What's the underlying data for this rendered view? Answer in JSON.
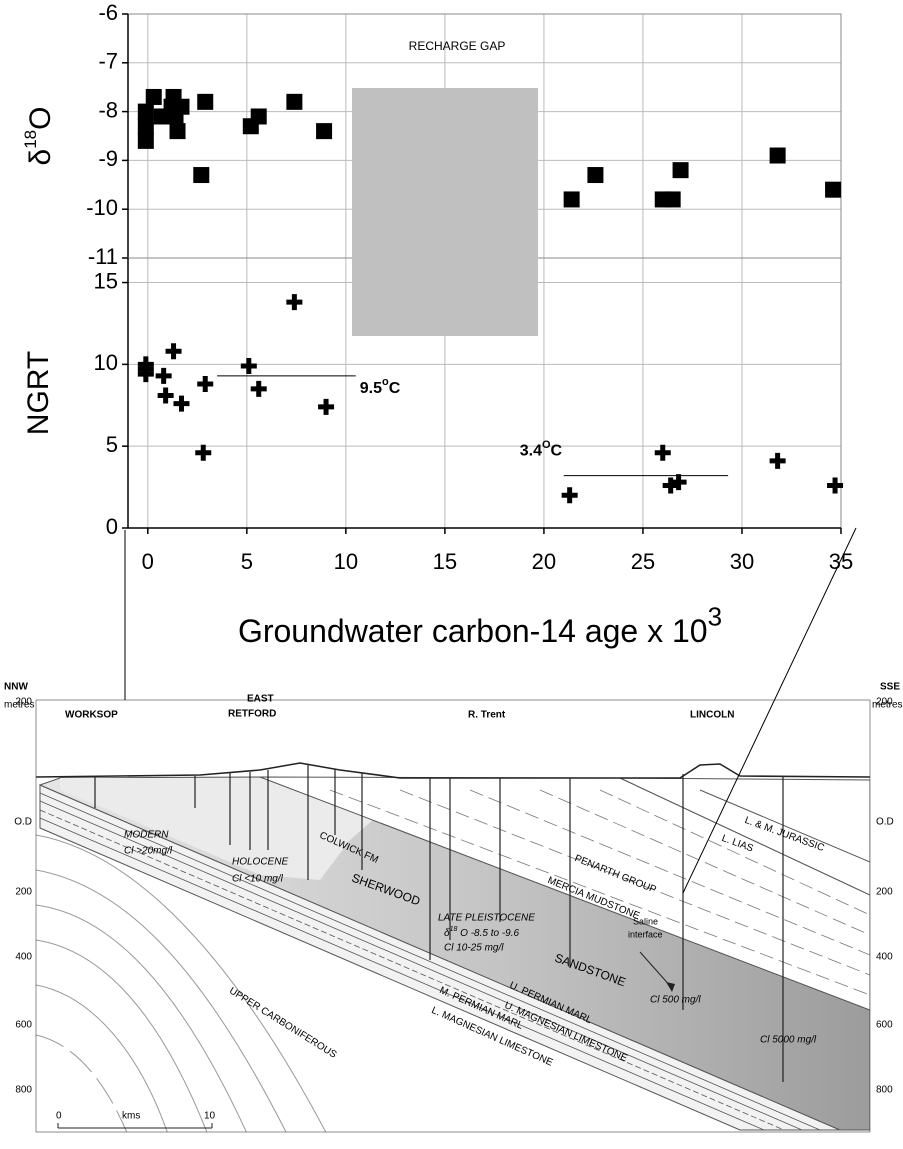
{
  "chart_data": [
    {
      "type": "scatter",
      "ylabel": {
        "base": "δ",
        "sup": "18",
        "after": "O"
      },
      "annotation": "RECHARGE GAP",
      "xlim": [
        -1,
        35
      ],
      "ylim": [
        -11,
        -6
      ],
      "yticks": [
        -6,
        -7,
        -8,
        -9,
        -10,
        -11
      ],
      "grid": true,
      "marker": "square",
      "color": "#000000",
      "x": [
        -0.1,
        -0.1,
        -0.1,
        0.3,
        0.7,
        1.2,
        1.3,
        1.4,
        1.5,
        1.7,
        2.9,
        2.7,
        5.2,
        5.6,
        7.4,
        8.9,
        21.4,
        22.6,
        26,
        26.5,
        26.9,
        31.8,
        34.6
      ],
      "values": [
        -8.0,
        -8.3,
        -8.6,
        -7.7,
        -8.1,
        -7.9,
        -7.7,
        -8.1,
        -8.4,
        -7.9,
        -7.8,
        -9.3,
        -8.3,
        -8.1,
        -7.8,
        -8.4,
        -9.8,
        -9.3,
        -9.8,
        -9.8,
        -9.2,
        -8.9,
        -9.6
      ]
    },
    {
      "type": "scatter",
      "ylabel": "NGRT",
      "xlabel": {
        "text": "Groundwater carbon-14 age x 10",
        "sup": "3"
      },
      "xlim": [
        -1,
        35
      ],
      "ylim": [
        0,
        16.5
      ],
      "xticks": [
        0,
        5,
        10,
        15,
        20,
        25,
        30,
        35
      ],
      "yticks": [
        0,
        5,
        10,
        15
      ],
      "grid": true,
      "marker": "plus",
      "color": "#000000",
      "x": [
        -0.1,
        -0.1,
        -0.1,
        0.8,
        0.9,
        1.3,
        1.7,
        2.8,
        2.9,
        5.1,
        5.6,
        7.4,
        9.0,
        21.3,
        26.0,
        26.4,
        26.8,
        31.8,
        34.7
      ],
      "values": [
        10.0,
        9.7,
        9.4,
        9.3,
        8.1,
        10.8,
        7.6,
        4.6,
        8.8,
        9.9,
        8.5,
        13.8,
        7.4,
        2.0,
        4.6,
        2.6,
        2.8,
        4.1,
        2.6
      ],
      "annotations": [
        {
          "text": "9.5",
          "sup": "o",
          "after": "C",
          "x": [
            3.5,
            10.5
          ],
          "y": 9.3
        },
        {
          "text": "3.4",
          "sup": "O",
          "after": "C",
          "x": [
            21,
            29.3
          ],
          "y": 3.2
        }
      ]
    }
  ],
  "section": {
    "left_direction": "NNW",
    "right_direction": "SSE",
    "unit": "metres",
    "depth_labels": [
      "200",
      "O.D",
      "200",
      "400",
      "600",
      "800"
    ],
    "towns": {
      "worksop": "WORKSOP",
      "east_retford": [
        "EAST",
        "RETFORD"
      ],
      "trent": "R. Trent",
      "lincoln": "LINCOLN"
    },
    "units": {
      "modern": "MODERN",
      "modern_cl": "Cl >20mg/l",
      "holocene": "HOLOCENE",
      "holocene_cl": "Cl <10 mg/l",
      "colwick": "COLWICK FM",
      "sherwood": "SHERWOOD",
      "sandstone": "SANDSTONE",
      "late_pleistocene": "LATE PLEISTOCENE",
      "pleistocene_delta": {
        "base": "δ",
        "sup": "18",
        "after": " O -8.5 to -9.6"
      },
      "pleistocene_cl": "Cl 10-25 mg/l",
      "penarth": "PENARTH GROUP",
      "mercia": "MERCIA MUDSTONE",
      "lias": "L. LIAS",
      "jurassic": "L. & M. JURASSIC",
      "saline": [
        "Saline",
        "interface"
      ],
      "cl500": "Cl 500 mg/l",
      "cl5000": "Cl 5000 mg/l",
      "carboniferous": "UPPER CARBONIFEROUS",
      "u_permian_marl": "U. PERMIAN MARL",
      "u_mag_lst": "U. MAGNESIAN LIMESTONE",
      "m_permian_marl": "M. PERMIAN MARL",
      "l_mag_lst": "L. MAGNESIAN LIMESTONE"
    },
    "scale": {
      "start": "0",
      "unit": "kms",
      "end": "10"
    }
  }
}
